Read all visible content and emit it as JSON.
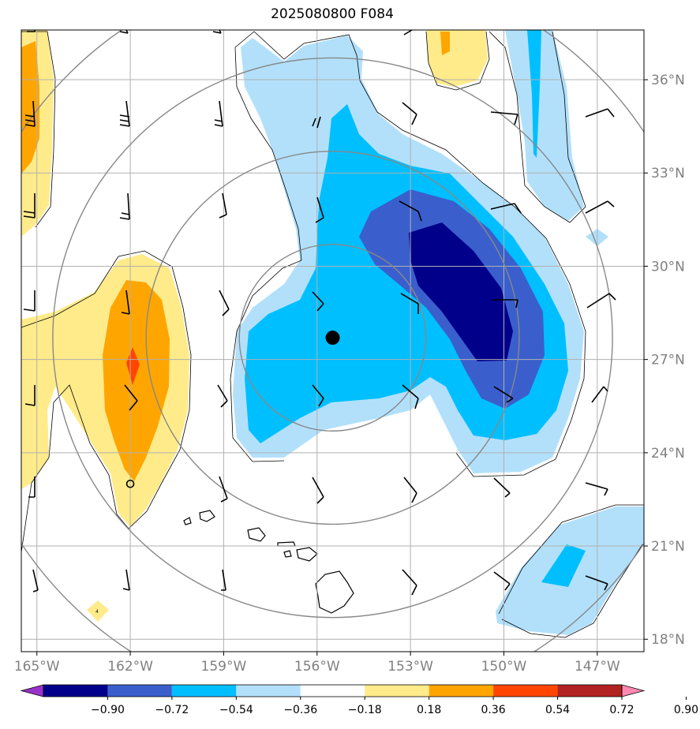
{
  "title": "2025080800 F084",
  "map": {
    "lon_range": [
      -165.5,
      -145.5
    ],
    "lat_range": [
      17.6,
      37.6
    ],
    "lon_ticks": [
      -165,
      -162,
      -159,
      -156,
      -153,
      -150,
      -147
    ],
    "lon_tick_labels": [
      "165°W",
      "162°W",
      "159°W",
      "156°W",
      "153°W",
      "150°W",
      "147°W"
    ],
    "lat_ticks": [
      18,
      21,
      24,
      27,
      30,
      33,
      36
    ],
    "lat_tick_labels": [
      "18°N",
      "21°N",
      "24°N",
      "27°N",
      "30°N",
      "33°N",
      "36°N"
    ],
    "grid": true,
    "center_marker": {
      "lon": -155.5,
      "lat": 27.7
    },
    "secondary_marker": {
      "lon": -162.0,
      "lat": 23.0
    },
    "range_rings_deg": [
      3,
      6,
      9,
      12
    ]
  },
  "colorbar": {
    "tick_labels": [
      "−0.90",
      "−0.72",
      "−0.54",
      "−0.36",
      "−0.18",
      "0.18",
      "0.36",
      "0.54",
      "0.72",
      "0.90"
    ],
    "colors": [
      "#9932cc",
      "#00008b",
      "#3a5fcd",
      "#00bfff",
      "#b2e0fb",
      "#ffffff",
      "#ffeb8a",
      "#ffa500",
      "#ff4500",
      "#b22222",
      "#ff88b0"
    ]
  },
  "colors": {
    "pos1": "#ffeb8a",
    "pos2": "#ffa500",
    "pos3": "#ff4500",
    "neg1": "#b2e0fb",
    "neg2": "#00bfff",
    "neg3": "#3a5fcd",
    "neg4": "#00008b",
    "grid": "#b0b0b0",
    "ring": "#888888"
  }
}
